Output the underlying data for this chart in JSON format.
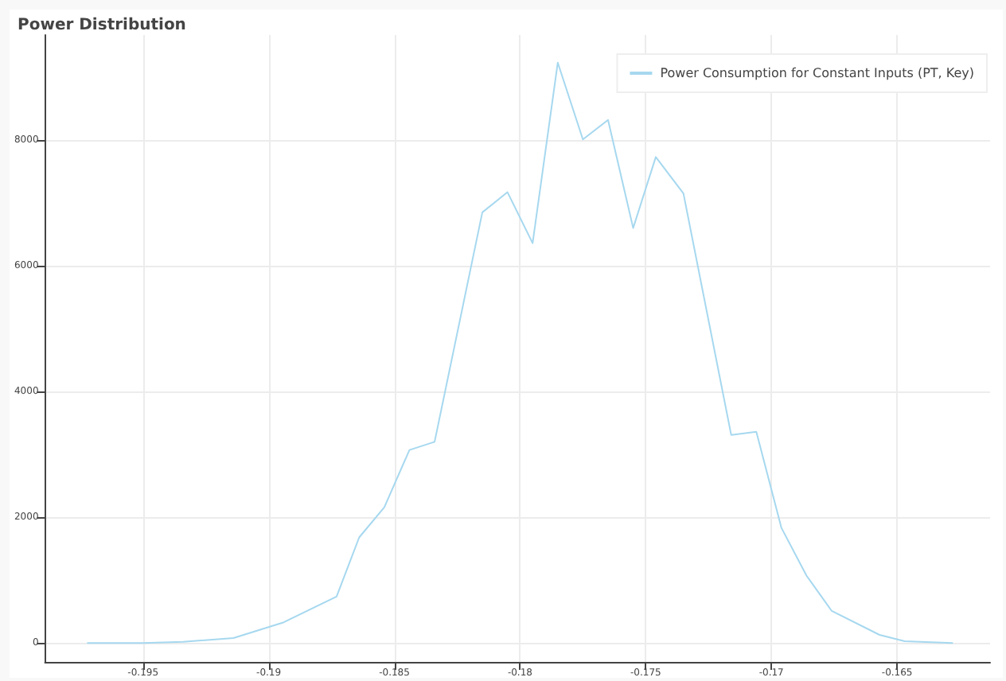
{
  "chart_data": {
    "type": "line",
    "title": "Power Distribution",
    "x": [
      -0.1972,
      -0.195,
      -0.1934,
      -0.1914,
      -0.1894,
      -0.1873,
      -0.1864,
      -0.1854,
      -0.1844,
      -0.1834,
      -0.1815,
      -0.1805,
      -0.1795,
      -0.1785,
      -0.1775,
      -0.1765,
      -0.1755,
      -0.1746,
      -0.1735,
      -0.1716,
      -0.1706,
      -0.1696,
      -0.1686,
      -0.1676,
      -0.1657,
      -0.1647,
      -0.1628
    ],
    "series": [
      {
        "name": "Power Consumption for Constant Inputs (PT, Key)",
        "color": "#a6d8ef",
        "values": [
          0,
          0,
          20,
          80,
          330,
          740,
          1680,
          2160,
          3070,
          3200,
          6850,
          7170,
          6360,
          9230,
          8010,
          8320,
          6600,
          7730,
          7150,
          3310,
          3360,
          1830,
          1070,
          510,
          130,
          30,
          0
        ]
      }
    ],
    "xlim": [
      -0.1989,
      -0.1613
    ],
    "xticks": [
      -0.195,
      -0.19,
      -0.185,
      -0.18,
      -0.175,
      -0.17,
      -0.165
    ],
    "ylim": [
      -300,
      9670
    ],
    "yticks": [
      0,
      2000,
      4000,
      6000,
      8000
    ],
    "grid": true,
    "legend": "top right",
    "marker": "none",
    "line_style": "solid"
  }
}
